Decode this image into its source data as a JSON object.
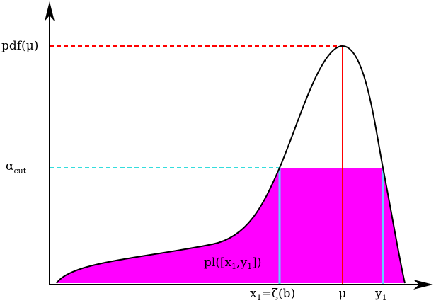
{
  "labels": {
    "pdf_mu": "pdf(μ)",
    "alpha_cut": [
      "α",
      "cut"
    ],
    "plausibility": [
      "pl([x",
      "1",
      ",y",
      "1",
      "])"
    ],
    "x1": [
      "x",
      "1",
      "=ζ(b)"
    ],
    "mu": "μ",
    "y1": [
      "y",
      "1"
    ]
  }
}
